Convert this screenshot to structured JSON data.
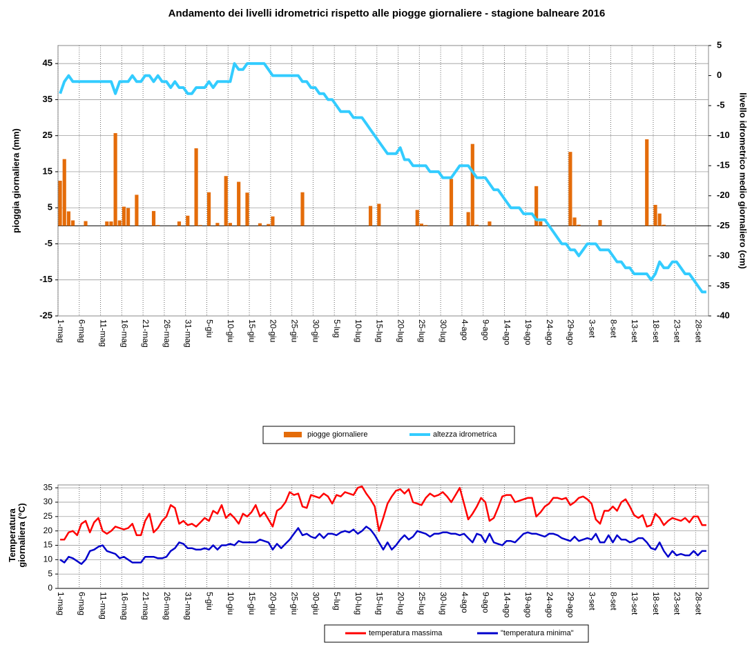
{
  "chart_data": [
    {
      "type": "combo",
      "title": "Andamento  dei livelli idrometrici rispetto alle piogge giornaliere - stagione balneare 2016",
      "y_label": "pioggia giornaliera (mm)",
      "y2_label": "livello idrometrico medio giornaliero (cm)",
      "categories": [
        "1-mag",
        null,
        null,
        null,
        null,
        "6-mag",
        null,
        null,
        null,
        null,
        "11-mag",
        null,
        null,
        null,
        null,
        "16-mag",
        null,
        null,
        null,
        null,
        "21-mag",
        null,
        null,
        null,
        null,
        "26-mag",
        null,
        null,
        null,
        null,
        "31-mag",
        null,
        null,
        null,
        null,
        "5-giu",
        null,
        null,
        null,
        null,
        "10-giu",
        null,
        null,
        null,
        null,
        "15-giu",
        null,
        null,
        null,
        null,
        "20-giu",
        null,
        null,
        null,
        null,
        "25-giu",
        null,
        null,
        null,
        null,
        "30-giu",
        null,
        null,
        null,
        null,
        "5-lug",
        null,
        null,
        null,
        null,
        "10-lug",
        null,
        null,
        null,
        null,
        "15-lug",
        null,
        null,
        null,
        null,
        "20-lug",
        null,
        null,
        null,
        null,
        "25-lug",
        null,
        null,
        null,
        null,
        "30-lug",
        null,
        null,
        null,
        null,
        "4-ago",
        null,
        null,
        null,
        null,
        "9-ago",
        null,
        null,
        null,
        null,
        "14-ago",
        null,
        null,
        null,
        null,
        "19-ago",
        null,
        null,
        null,
        null,
        "24-ago",
        null,
        null,
        null,
        null,
        "29-ago",
        null,
        null,
        null,
        null,
        "3-set",
        null,
        null,
        null,
        null,
        "8-set",
        null,
        null,
        null,
        null,
        "13-set",
        null,
        null,
        null,
        null,
        "18-set",
        null,
        null,
        null,
        null,
        "23-set",
        null,
        null,
        null,
        null,
        "28-set",
        null,
        null
      ],
      "series": [
        {
          "name": "piogge giornaliere",
          "color": "#e46c0a",
          "type": "bar",
          "values": [
            12.5,
            18.5,
            4,
            1.5,
            0,
            0,
            1.3,
            0,
            0,
            0,
            0,
            1.2,
            1.2,
            25.7,
            1.5,
            5.3,
            4.9,
            0,
            8.6,
            0,
            0,
            0,
            4.1,
            0.2,
            0,
            0,
            0,
            0,
            1.2,
            0,
            2.8,
            0,
            21.5,
            0.2,
            0,
            9.3,
            0,
            0.8,
            0,
            13.8,
            0.8,
            0,
            12.2,
            0,
            9.2,
            0,
            0,
            0.7,
            0,
            0.5,
            2.6,
            0,
            0,
            0,
            0,
            0,
            0,
            9.3,
            0,
            0,
            0,
            0,
            0,
            0,
            0,
            0,
            0,
            0,
            0,
            0,
            0,
            0,
            0,
            5.5,
            0,
            6.1,
            0,
            0,
            0,
            0,
            0,
            0,
            0,
            0,
            4.4,
            0.6,
            0.2,
            0,
            0,
            0,
            0,
            0,
            13,
            0,
            0,
            0,
            3.8,
            22.7,
            0.3,
            0,
            0,
            1.2,
            0,
            0,
            0,
            0,
            0,
            0,
            0,
            0,
            0,
            0,
            11,
            1.2,
            0,
            0,
            0,
            0,
            0,
            0,
            20.5,
            2.3,
            0.3,
            0,
            0,
            0,
            0,
            1.6,
            0,
            0,
            0,
            0,
            0,
            0,
            0,
            0,
            0,
            0,
            24,
            0.2,
            5.8,
            3.4,
            0.3,
            0,
            0,
            0,
            0,
            0,
            0,
            0,
            0,
            0,
            0
          ]
        },
        {
          "name": "altezza idrometrica",
          "color": "#33ccff",
          "type": "line",
          "axis": "y2",
          "values": [
            -3,
            -1,
            0,
            -1,
            -1,
            -1,
            -1,
            -1,
            -1,
            -1,
            -1,
            -1,
            -1,
            -3,
            -1,
            -1,
            -1,
            0,
            -1,
            -1,
            0,
            0,
            -1,
            0,
            -1,
            -1,
            -2,
            -1,
            -2,
            -2,
            -3,
            -3,
            -2,
            -2,
            -2,
            -1,
            -2,
            -1,
            -1,
            -1,
            -1,
            2,
            1,
            1,
            2,
            2,
            2,
            2,
            2,
            1,
            0,
            0,
            0,
            0,
            0,
            0,
            0,
            -1,
            -1,
            -2,
            -2,
            -3,
            -3,
            -4,
            -4,
            -5,
            -6,
            -6,
            -6,
            -7,
            -7,
            -7,
            -8,
            -9,
            -10,
            -11,
            -12,
            -13,
            -13,
            -13,
            -12,
            -14,
            -14,
            -15,
            -15,
            -15,
            -15,
            -16,
            -16,
            -16,
            -17,
            -17,
            -17,
            -16,
            -15,
            -15,
            -15,
            -16,
            -17,
            -17,
            -17,
            -18,
            -19,
            -19,
            -20,
            -21,
            -22,
            -22,
            -22,
            -23,
            -23,
            -23,
            -24,
            -24,
            -24,
            -25,
            -26,
            -27,
            -28,
            -28,
            -29,
            -29,
            -30,
            -29,
            -28,
            -28,
            -28,
            -29,
            -29,
            -29,
            -30,
            -31,
            -31,
            -32,
            -32,
            -33,
            -33,
            -33,
            -33,
            -34,
            -33,
            -31,
            -32,
            -32,
            -31,
            -31,
            -32,
            -33,
            -33,
            -34,
            -35,
            -36,
            -36
          ]
        }
      ],
      "ylim": [
        -25,
        50
      ],
      "yticks": [
        -25,
        -15,
        -5,
        5,
        15,
        25,
        35,
        45
      ],
      "y2lim": [
        -40,
        5
      ],
      "y2ticks": [
        -40,
        -35,
        -30,
        -25,
        -20,
        -15,
        -10,
        -5,
        0,
        5
      ],
      "grid": true
    },
    {
      "type": "line",
      "y_label": "Temperatura giornaliera (°C)",
      "categories": [
        "1-mag",
        null,
        null,
        null,
        null,
        "6-mag",
        null,
        null,
        null,
        null,
        "11-mag",
        null,
        null,
        null,
        null,
        "16-mag",
        null,
        null,
        null,
        null,
        "21-mag",
        null,
        null,
        null,
        null,
        "26-mag",
        null,
        null,
        null,
        null,
        "31-mag",
        null,
        null,
        null,
        null,
        "5-giu",
        null,
        null,
        null,
        null,
        "10-giu",
        null,
        null,
        null,
        null,
        "15-giu",
        null,
        null,
        null,
        null,
        "20-giu",
        null,
        null,
        null,
        null,
        "25-giu",
        null,
        null,
        null,
        null,
        "30-giu",
        null,
        null,
        null,
        null,
        "5-lug",
        null,
        null,
        null,
        null,
        "10-lug",
        null,
        null,
        null,
        null,
        "15-lug",
        null,
        null,
        null,
        null,
        "20-lug",
        null,
        null,
        null,
        null,
        "25-lug",
        null,
        null,
        null,
        null,
        "30-lug",
        null,
        null,
        null,
        null,
        "4-ago",
        null,
        null,
        null,
        null,
        "9-ago",
        null,
        null,
        null,
        null,
        "14-ago",
        null,
        null,
        null,
        null,
        "19-ago",
        null,
        null,
        null,
        null,
        "24-ago",
        null,
        null,
        null,
        null,
        "29-ago",
        null,
        null,
        null,
        null,
        "3-set",
        null,
        null,
        null,
        null,
        "8-set",
        null,
        null,
        null,
        null,
        "13-set",
        null,
        null,
        null,
        null,
        "18-set",
        null,
        null,
        null,
        null,
        "23-set",
        null,
        null,
        null,
        null,
        "28-set",
        null,
        null
      ],
      "series": [
        {
          "name": "temperatura massima",
          "color": "#ff0000",
          "values": [
            17,
            17,
            19.5,
            20,
            18.5,
            22.5,
            23.5,
            19.5,
            23,
            24.5,
            20,
            19,
            20,
            21.5,
            21,
            20.5,
            21,
            22.5,
            18.5,
            18.5,
            23.5,
            26,
            19.5,
            21,
            23.5,
            25,
            29,
            28,
            22.5,
            23.5,
            22,
            22.5,
            21.5,
            23,
            24.5,
            23.5,
            27,
            26,
            29,
            24.5,
            26,
            24.5,
            22.5,
            26,
            25,
            26.5,
            29,
            25,
            26.5,
            24,
            21.5,
            27,
            28,
            30,
            33.5,
            32.5,
            33,
            28.5,
            28,
            32.5,
            32,
            31.5,
            33,
            32,
            29.5,
            32.5,
            32,
            33.5,
            33,
            32.5,
            35,
            35.5,
            33,
            31,
            28.5,
            20,
            24.5,
            29.5,
            32,
            34,
            34.5,
            33,
            34.5,
            30,
            29.5,
            29,
            31.5,
            33,
            32,
            32.5,
            33.5,
            32,
            30,
            32.5,
            35,
            29.5,
            24,
            26,
            28.5,
            31.5,
            30,
            23.5,
            24.5,
            28,
            32,
            32.5,
            32.5,
            30,
            30.5,
            31,
            31.5,
            31.5,
            25,
            26.5,
            28.5,
            29.5,
            31.5,
            31.5,
            31,
            31.5,
            29,
            30,
            31.5,
            32,
            31,
            29.5,
            24,
            22.5,
            27,
            27,
            28.5,
            27,
            30,
            31,
            28.5,
            25.5,
            24.5,
            25.5,
            21.5,
            22,
            26,
            24.5,
            22,
            23.5,
            24.5,
            24,
            23.5,
            24.5,
            23,
            25,
            25,
            22,
            22
          ]
        },
        {
          "name": "\"temperatura minima\"",
          "color": "#0000cc",
          "values": [
            10,
            9,
            11,
            10.5,
            9.5,
            8.5,
            10,
            13,
            13.5,
            14.5,
            15,
            13,
            12.5,
            12,
            10.5,
            11,
            10,
            9,
            9,
            9,
            11,
            11,
            11,
            10.5,
            10.5,
            11,
            13,
            14,
            16,
            15.5,
            14,
            14,
            13.5,
            13.5,
            14,
            13.5,
            15,
            13.5,
            15,
            15,
            15.5,
            15,
            16.5,
            16,
            16,
            16,
            16,
            17,
            16.5,
            16,
            13.5,
            15.5,
            14,
            15.5,
            17,
            19,
            21,
            18.5,
            19,
            18,
            17.5,
            19,
            17.5,
            19,
            19,
            18.5,
            19.5,
            20,
            19.5,
            20.5,
            19,
            20,
            21.5,
            20.5,
            18.5,
            16,
            13.5,
            16,
            13.5,
            15,
            17,
            18.5,
            17,
            18,
            20,
            19.5,
            19,
            18,
            19,
            19,
            19.5,
            19.5,
            19,
            19,
            18.5,
            19,
            17.5,
            16,
            19,
            18.5,
            16,
            19,
            16,
            15.5,
            15,
            16.5,
            16.5,
            16,
            17.5,
            19,
            19.5,
            19,
            19,
            18.5,
            18,
            19,
            19,
            18.5,
            17.5,
            17,
            16.5,
            18,
            16.5,
            17,
            17.5,
            17,
            19,
            16,
            16,
            18.5,
            16,
            18.5,
            17,
            17,
            16,
            16.5,
            17.5,
            17.5,
            16,
            14,
            13.5,
            16,
            13,
            11,
            13,
            11.5,
            12,
            11.5,
            11.5,
            13,
            11.5,
            13,
            13
          ]
        }
      ],
      "ylim": [
        0,
        36
      ],
      "yticks": [
        0,
        5,
        10,
        15,
        20,
        25,
        30,
        35
      ],
      "grid": true
    }
  ]
}
